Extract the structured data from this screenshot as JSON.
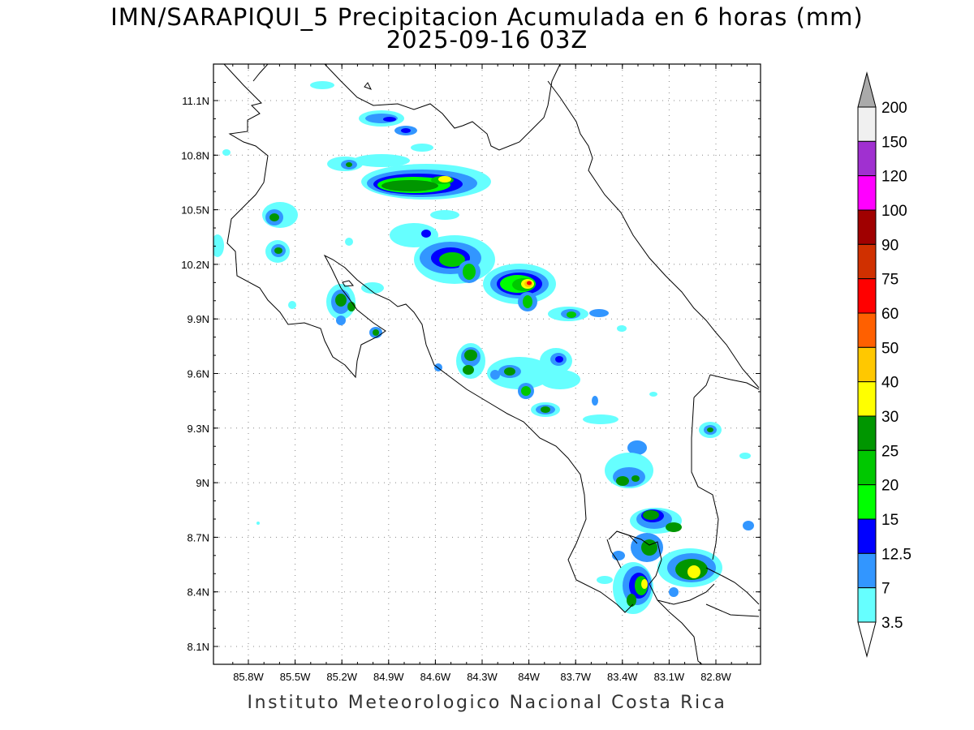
{
  "header": {
    "title_line1": "IMN/SARAPIQUI_5 Precipitacion Acumulada en 6 horas (mm)",
    "title_line2": "2025-09-16 03Z"
  },
  "footer": {
    "credit": "Instituto Meteorologico Nacional Costa Rica"
  },
  "map": {
    "lat_labels": [
      "11.1N",
      "10.8N",
      "10.5N",
      "10.2N",
      "9.9N",
      "9.6N",
      "9.3N",
      "9N",
      "8.7N",
      "8.4N",
      "8.1N"
    ],
    "lon_labels": [
      "85.8W",
      "85.5W",
      "85.2W",
      "84.9W",
      "84.6W",
      "84.3W",
      "84W",
      "83.7W",
      "83.4W",
      "83.1W",
      "82.8W"
    ]
  },
  "legend": {
    "levels": [
      {
        "label": "200",
        "color": "#aaaaaa"
      },
      {
        "label": "150",
        "color": "#f0f0f0"
      },
      {
        "label": "120",
        "color": "#a030d0"
      },
      {
        "label": "100",
        "color": "#ff00ff"
      },
      {
        "label": "90",
        "color": "#a00000"
      },
      {
        "label": "75",
        "color": "#d03000"
      },
      {
        "label": "60",
        "color": "#ff0000"
      },
      {
        "label": "50",
        "color": "#ff6000"
      },
      {
        "label": "40",
        "color": "#ffc800"
      },
      {
        "label": "30",
        "color": "#ffff00"
      },
      {
        "label": "25",
        "color": "#009600"
      },
      {
        "label": "20",
        "color": "#00c800"
      },
      {
        "label": "15",
        "color": "#00ff00"
      },
      {
        "label": "12.5",
        "color": "#0000ff"
      },
      {
        "label": "7",
        "color": "#3296ff"
      },
      {
        "label": "3.5",
        "color": "#66ffff"
      }
    ]
  }
}
